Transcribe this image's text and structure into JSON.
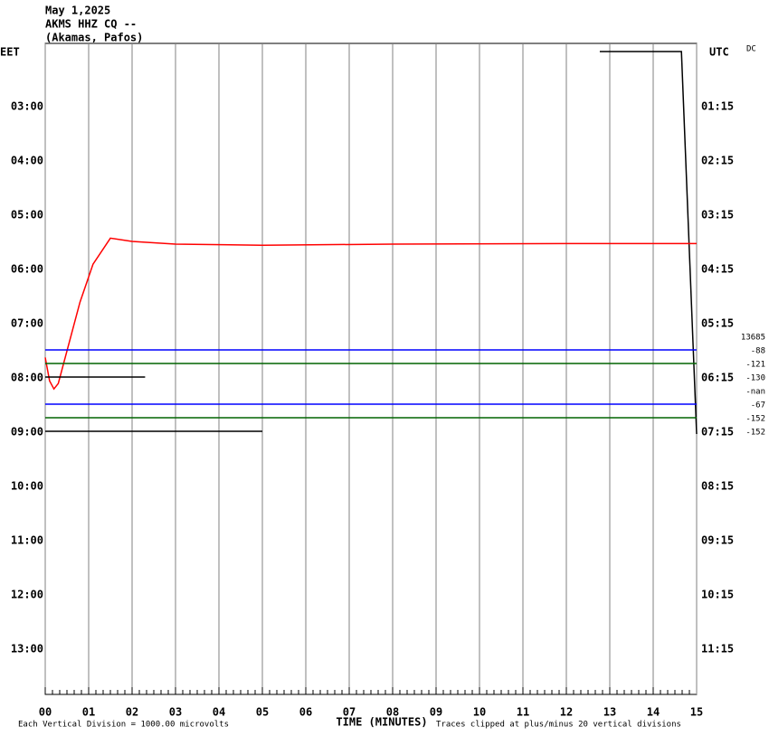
{
  "chart_data": {
    "type": "helicorder",
    "title": [
      "May 1,2025",
      "AKMS HHZ CQ --",
      "(Akamas, Pafos)"
    ],
    "left_axis_label": "EET",
    "right_axis_label": "UTC",
    "corner_label": "DC",
    "xlabel": "TIME (MINUTES)",
    "footer_left": "Each Vertical Division = 1000.00 microvolts",
    "footer_right": "Traces clipped at plus/minus 20 vertical divisions",
    "xlim": [
      0,
      15
    ],
    "xticks": [
      {
        "value": 0,
        "label": "00"
      },
      {
        "value": 1,
        "label": "01"
      },
      {
        "value": 2,
        "label": "02"
      },
      {
        "value": 3,
        "label": "03"
      },
      {
        "value": 4,
        "label": "04"
      },
      {
        "value": 5,
        "label": "05"
      },
      {
        "value": 6,
        "label": "06"
      },
      {
        "value": 7,
        "label": "07"
      },
      {
        "value": 8,
        "label": "08"
      },
      {
        "value": 9,
        "label": "09"
      },
      {
        "value": 10,
        "label": "10"
      },
      {
        "value": 11,
        "label": "11"
      },
      {
        "value": 12,
        "label": "12"
      },
      {
        "value": 13,
        "label": "13"
      },
      {
        "value": 14,
        "label": "14"
      },
      {
        "value": 15,
        "label": "15"
      }
    ],
    "ylim": [
      1.83,
      13.83
    ],
    "yticks": [
      {
        "value": 3,
        "label": "03:00"
      },
      {
        "value": 4,
        "label": "04:00"
      },
      {
        "value": 5,
        "label": "05:00"
      },
      {
        "value": 6,
        "label": "06:00"
      },
      {
        "value": 7,
        "label": "07:00"
      },
      {
        "value": 8,
        "label": "08:00"
      },
      {
        "value": 9,
        "label": "09:00"
      },
      {
        "value": 10,
        "label": "10:00"
      },
      {
        "value": 11,
        "label": "11:00"
      },
      {
        "value": 12,
        "label": "12:00"
      },
      {
        "value": 13,
        "label": "13:00"
      }
    ],
    "y2ticks": [
      {
        "value": 3,
        "label": "01:15"
      },
      {
        "value": 4,
        "label": "02:15"
      },
      {
        "value": 5,
        "label": "03:15"
      },
      {
        "value": 6,
        "label": "04:15"
      },
      {
        "value": 7,
        "label": "05:15"
      },
      {
        "value": 8,
        "label": "06:15"
      },
      {
        "value": 9,
        "label": "07:15"
      },
      {
        "value": 10,
        "label": "08:15"
      },
      {
        "value": 11,
        "label": "09:15"
      },
      {
        "value": 12,
        "label": "10:15"
      },
      {
        "value": 13,
        "label": "11:15"
      }
    ],
    "side_labels": [
      {
        "value": 7.25,
        "label": "13685"
      },
      {
        "value": 7.5,
        "label": "-88"
      },
      {
        "value": 7.75,
        "label": "-121"
      },
      {
        "value": 8,
        "label": "-130"
      },
      {
        "value": 8.25,
        "label": "-nan"
      },
      {
        "value": 8.5,
        "label": "-67"
      },
      {
        "value": 8.75,
        "label": "-152"
      },
      {
        "value": 9,
        "label": "-152"
      }
    ],
    "series": [
      {
        "color": "#000000",
        "x": [
          12.77,
          14.65,
          15
        ],
        "values": [
          1.98,
          1.98,
          9.03
        ]
      },
      {
        "color": "#ff0000",
        "x": [
          0,
          0.1,
          0.2,
          0.3,
          0.5,
          0.8,
          1.1,
          1.5,
          2,
          3,
          5,
          8,
          12,
          15
        ],
        "values": [
          7.62,
          8.05,
          8.2,
          8.1,
          7.5,
          6.6,
          5.9,
          5.42,
          5.48,
          5.53,
          5.55,
          5.53,
          5.52,
          5.52
        ]
      },
      {
        "color": "#0000ff",
        "x": [
          0,
          15
        ],
        "values": [
          7.48,
          7.48
        ]
      },
      {
        "color": "#006400",
        "x": [
          0,
          15
        ],
        "values": [
          7.73,
          7.73
        ]
      },
      {
        "color": "#000000",
        "x": [
          0,
          2.3
        ],
        "values": [
          7.98,
          7.98
        ]
      },
      {
        "color": "#0000ff",
        "x": [
          0,
          15
        ],
        "values": [
          8.48,
          8.48
        ]
      },
      {
        "color": "#006400",
        "x": [
          0,
          15
        ],
        "values": [
          8.73,
          8.73
        ]
      },
      {
        "color": "#000000",
        "x": [
          0,
          5
        ],
        "values": [
          8.98,
          8.98
        ]
      }
    ]
  }
}
